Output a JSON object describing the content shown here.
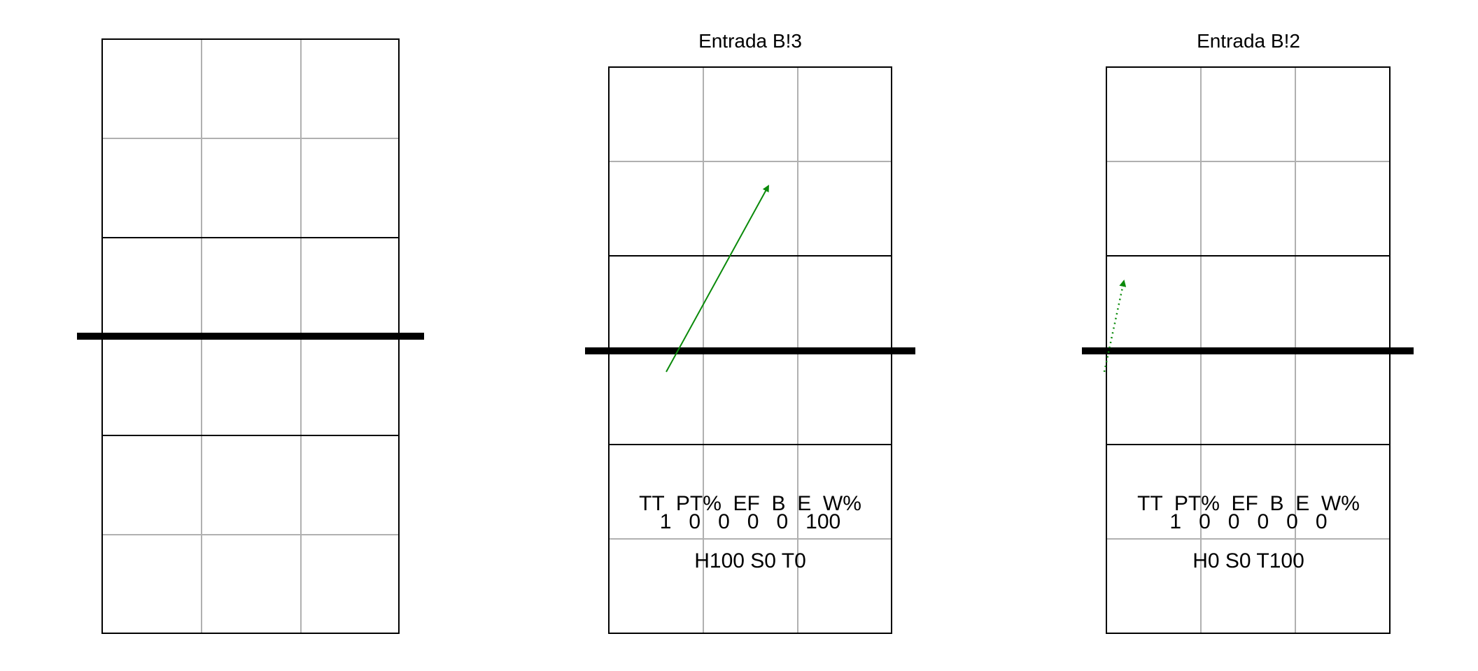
{
  "panels": [
    {
      "id": "court-empty",
      "title": "",
      "arrow": null,
      "stats_header": "",
      "stats_values": "",
      "distribution": ""
    },
    {
      "id": "court-entrada-b3",
      "title": "Entrada B!3",
      "arrow": {
        "style": "solid",
        "color": "#0a8a0a"
      },
      "stats_header": "TT  PT%  EF  B  E  W%",
      "stats_values": "1   0   0   0   0   100",
      "distribution": "H100 S0 T0"
    },
    {
      "id": "court-entrada-b2",
      "title": "Entrada B!2",
      "arrow": {
        "style": "dotted",
        "color": "#0a8a0a"
      },
      "stats_header": "TT  PT%  EF  B  E  W%",
      "stats_values": "1   0   0   0   0   0",
      "distribution": "H0 S0 T100"
    }
  ],
  "colors": {
    "court_line": "#000000",
    "zone_line": "#b0b0b0",
    "net": "#000000",
    "arrow": "#0a8a0a"
  }
}
